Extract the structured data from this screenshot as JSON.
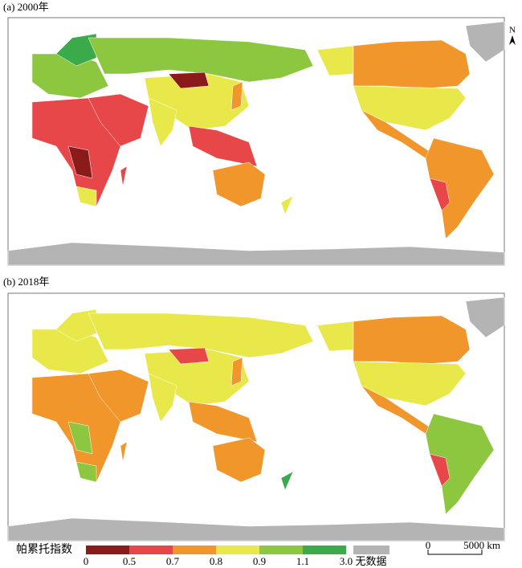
{
  "panels": [
    {
      "title": "(a) 2000年"
    },
    {
      "title": "(b) 2018年"
    }
  ],
  "north": "N",
  "legend": {
    "title": "帕累托指数",
    "breaks": [
      0,
      0.5,
      0.7,
      0.8,
      0.9,
      1.1,
      {
        "value": 3,
        "label": "3.0"
      }
    ],
    "colors": [
      "#8b1a1a",
      "#e8474a",
      "#f0962a",
      "#e8e84a",
      "#8dc63f",
      "#3aaa4a"
    ],
    "no_data": {
      "label": "无数据",
      "color": "#b4b4b4"
    }
  },
  "scale_bar": {
    "labels": [
      "0",
      "5000 km"
    ]
  }
}
